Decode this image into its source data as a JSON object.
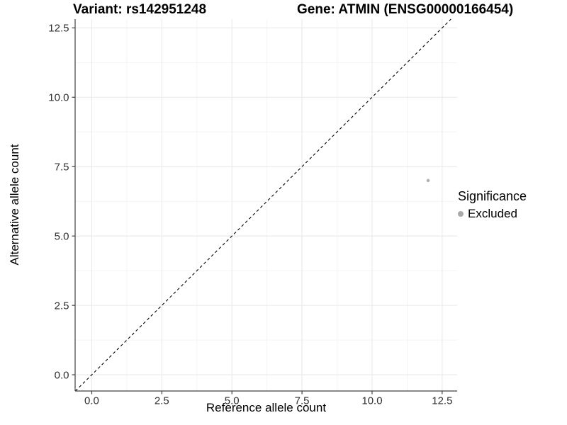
{
  "chart_data": {
    "type": "scatter",
    "titles": {
      "left": "Variant: rs142951248",
      "right": "Gene: ATMIN (ENSG00000166454)"
    },
    "xlabel": "Reference allele count",
    "ylabel": "Alternative allele count",
    "xlim": [
      -0.594,
      13.035
    ],
    "ylim": [
      -0.585,
      12.815
    ],
    "ticks": {
      "values": [
        0,
        2.5,
        5,
        7.5,
        10,
        12.5
      ],
      "labels": [
        "0.0",
        "2.5",
        "5.0",
        "7.5",
        "10.0",
        "12.5"
      ]
    },
    "minor_tick_values": [
      1.25,
      3.75,
      6.25,
      8.75,
      11.25
    ],
    "grid": {
      "major": true,
      "minor": true
    },
    "reference_line": {
      "type": "identity",
      "slope": 1,
      "intercept": 0,
      "style": "dashed",
      "color": "#000000"
    },
    "series": [
      {
        "name": "Excluded",
        "color": "#b2b2b2",
        "point_radius": 2.3,
        "points": [
          {
            "x": 12,
            "y": 7
          }
        ]
      }
    ],
    "legend": {
      "title": "Significance",
      "position": "right",
      "items": [
        {
          "label": "Excluded",
          "color": "#a9a9a9"
        }
      ]
    }
  },
  "style": {
    "colors": {
      "background": "#ffffff",
      "axis_line": "#404040",
      "tick_mark": "#404040",
      "tick_label": "#303030",
      "grid_major": "#e9e9e9",
      "grid_minor": "#f4f4f4",
      "title": "#000000",
      "reference_line": "#000000"
    }
  }
}
